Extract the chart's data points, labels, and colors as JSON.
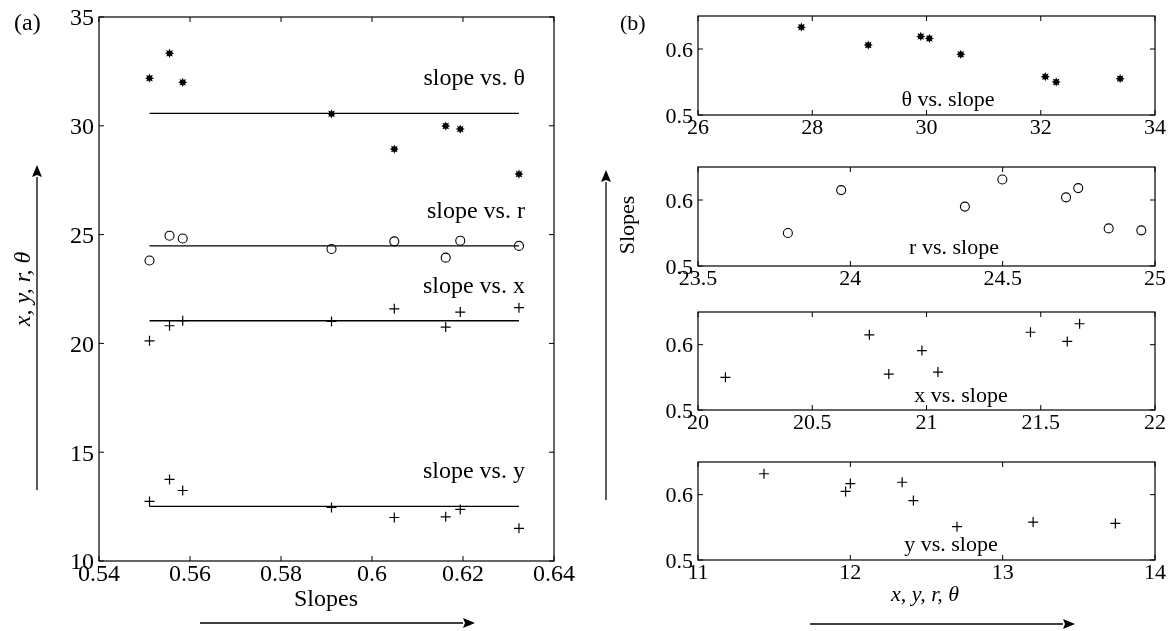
{
  "chart_data": [
    {
      "type": "scatter",
      "xlabel": "Slopes",
      "ylabel": "x, y, r, θ",
      "x": [
        0.5511,
        0.5555,
        0.5584,
        0.5911,
        0.6049,
        0.6162,
        0.6194,
        0.6323
      ],
      "xlim": [
        0.54,
        0.64
      ],
      "xticks": [
        0.54,
        0.56,
        0.58,
        0.6,
        0.62,
        0.64
      ],
      "ylim": [
        10,
        35
      ],
      "yticks": [
        10,
        15,
        20,
        25,
        30,
        35
      ],
      "annotations": [
        "(a)"
      ],
      "ref_lines": [
        {
          "axis": "y",
          "value": 30.57,
          "label": "slope vs. θ",
          "color": "#000000"
        },
        {
          "axis": "y",
          "value": 24.48,
          "label": "slope vs. r",
          "color": "#000000"
        },
        {
          "axis": "y",
          "value": 21.04,
          "label": "slope vs. x",
          "color": "#000000"
        },
        {
          "axis": "y",
          "value": 12.51,
          "label": "slope vs. y",
          "color": "#000000"
        }
      ],
      "series": [
        {
          "color": "#000000",
          "marker": "star",
          "values": [
            32.19,
            33.33,
            32.0,
            30.55,
            28.93,
            29.99,
            29.85,
            27.78
          ]
        },
        {
          "color": "#000000",
          "marker": "circle",
          "values": [
            23.81,
            24.95,
            24.82,
            24.34,
            24.69,
            23.94,
            24.72,
            24.48
          ]
        },
        {
          "color": "#000000",
          "marker": "cross",
          "values": [
            20.12,
            20.81,
            21.04,
            21.01,
            21.59,
            20.75,
            21.44,
            21.64
          ]
        },
        {
          "color": "#000000",
          "marker": "cross",
          "values": [
            12.74,
            13.75,
            13.24,
            12.46,
            12.0,
            12.03,
            12.37,
            11.5
          ]
        }
      ]
    },
    {
      "type": "scatter",
      "x": [
        27.81,
        28.98,
        29.9,
        30.05,
        30.6,
        32.08,
        32.27,
        33.39
      ],
      "xlim": [
        26,
        34
      ],
      "xticks": [
        26,
        28,
        30,
        32,
        34
      ],
      "ylim": [
        0.5,
        0.65
      ],
      "yticks": [
        0.5,
        0.6
      ],
      "annotations": [
        "(b)",
        "θ vs. slope"
      ],
      "series": [
        {
          "color": "#000000",
          "marker": "star",
          "values": [
            0.633,
            0.606,
            0.619,
            0.616,
            0.592,
            0.558,
            0.55,
            0.555
          ]
        }
      ]
    },
    {
      "type": "scatter",
      "ylabel": "Slopes",
      "x": [
        23.795,
        23.97,
        24.376,
        24.499,
        24.708,
        24.748,
        24.848,
        24.955
      ],
      "xlim": [
        23.5,
        25
      ],
      "xticks": [
        23.5,
        24,
        24.5,
        25
      ],
      "ylim": [
        0.5,
        0.65
      ],
      "yticks": [
        0.5,
        0.6
      ],
      "annotations": [
        "r vs. slope"
      ],
      "series": [
        {
          "color": "#000000",
          "marker": "circle",
          "values": [
            0.55,
            0.615,
            0.59,
            0.631,
            0.604,
            0.618,
            0.557,
            0.554
          ]
        }
      ]
    },
    {
      "type": "scatter",
      "x": [
        20.12,
        20.75,
        20.835,
        20.98,
        21.05,
        21.455,
        21.616,
        21.67
      ],
      "xlim": [
        20,
        22
      ],
      "xticks": [
        20,
        20.5,
        21,
        21.5,
        22
      ],
      "ylim": [
        0.5,
        0.65
      ],
      "yticks": [
        0.5,
        0.6
      ],
      "annotations": [
        "x vs. slope"
      ],
      "series": [
        {
          "color": "#000000",
          "marker": "cross",
          "values": [
            0.55,
            0.615,
            0.555,
            0.591,
            0.558,
            0.619,
            0.605,
            0.632
          ]
        }
      ]
    },
    {
      "type": "scatter",
      "xlabel": "x, y, r,  θ",
      "x": [
        11.433,
        11.969,
        12.0,
        12.34,
        12.414,
        12.7,
        13.2,
        13.74
      ],
      "xlim": [
        11,
        14
      ],
      "xticks": [
        11,
        12,
        13,
        14
      ],
      "ylim": [
        0.5,
        0.65
      ],
      "yticks": [
        0.5,
        0.6
      ],
      "annotations": [
        "y vs. slope"
      ],
      "series": [
        {
          "color": "#000000",
          "marker": "cross",
          "values": [
            0.632,
            0.605,
            0.617,
            0.619,
            0.591,
            0.551,
            0.558,
            0.556
          ]
        }
      ]
    }
  ]
}
